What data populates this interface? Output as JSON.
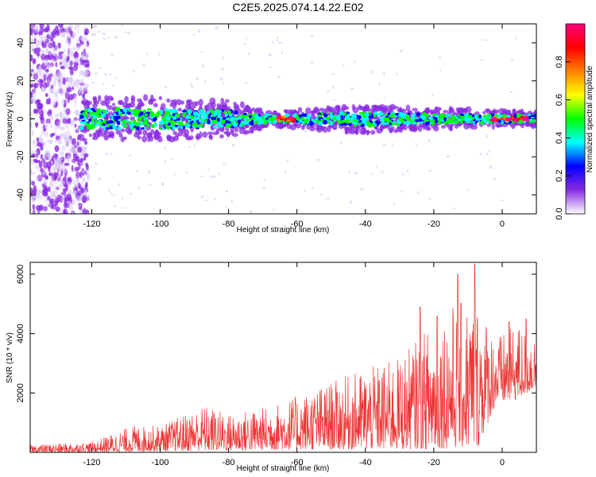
{
  "title": "C2E5.2025.074.14.22.E02",
  "chart_data": [
    {
      "type": "heatmap",
      "xlabel": "Height of straight line (km)",
      "ylabel": "Frequency (Hz)",
      "xlim": [
        -138,
        10
      ],
      "ylim": [
        -50,
        50
      ],
      "x_ticks": [
        -120,
        -100,
        -80,
        -60,
        -40,
        -20,
        0
      ],
      "y_ticks": [
        -40,
        -20,
        0,
        20,
        40
      ],
      "x_tick_labels": [
        "-120",
        "-100",
        "-80",
        "-60",
        "-40",
        "-20",
        "0"
      ],
      "y_tick_labels": [
        "-40",
        "-20",
        "0",
        "20",
        "40"
      ],
      "colorbar": {
        "label": "Normalized spectral amplitude",
        "range": [
          0,
          1
        ],
        "ticks": [
          0.0,
          0.2,
          0.4,
          0.6,
          0.8
        ],
        "tick_labels": [
          "0.0",
          "0.2",
          "0.4",
          "0.6",
          "0.8"
        ],
        "colors": [
          "#ffffff",
          "#8a2be2",
          "#0000ff",
          "#00ffff",
          "#00ff00",
          "#ffff00",
          "#ff8000",
          "#ff0000",
          "#ff0080"
        ]
      },
      "band": {
        "center_hz": 0,
        "noise_below_km": -123,
        "halfwidth_hz": [
          {
            "x": -124,
            "w": 6
          },
          {
            "x": -100,
            "w": 6
          },
          {
            "x": -80,
            "w": 5
          },
          {
            "x": -67,
            "w": 2
          },
          {
            "x": -40,
            "w": 4
          },
          {
            "x": -25,
            "w": 3
          },
          {
            "x": 10,
            "w": 2
          }
        ],
        "hot_segments_km": [
          [
            -66,
            -60
          ],
          [
            -3,
            8
          ]
        ]
      }
    },
    {
      "type": "line",
      "xlabel": "Height of straight line (km)",
      "ylabel": "SNR (10 * v/v)",
      "xlim": [
        -138,
        10
      ],
      "ylim": [
        0,
        6400
      ],
      "x_ticks": [
        -120,
        -100,
        -80,
        -60,
        -40,
        -20,
        0
      ],
      "y_ticks": [
        2000,
        4000,
        6000
      ],
      "x_tick_labels": [
        "-120",
        "-100",
        "-80",
        "-60",
        "-40",
        "-20",
        "0"
      ],
      "y_tick_labels": [
        "2000",
        "4000",
        "6000"
      ],
      "color": "#ee3333",
      "envelope": [
        {
          "x": -138,
          "low": 0,
          "high": 250
        },
        {
          "x": -120,
          "low": 0,
          "high": 350
        },
        {
          "x": -108,
          "low": 20,
          "high": 900
        },
        {
          "x": -100,
          "low": 40,
          "high": 900
        },
        {
          "x": -87,
          "low": 60,
          "high": 1600
        },
        {
          "x": -80,
          "low": 60,
          "high": 1300
        },
        {
          "x": -70,
          "low": 80,
          "high": 1500
        },
        {
          "x": -60,
          "low": 100,
          "high": 1900
        },
        {
          "x": -45,
          "low": 100,
          "high": 2600
        },
        {
          "x": -30,
          "low": 100,
          "high": 3200
        },
        {
          "x": -20,
          "low": 120,
          "high": 4400
        },
        {
          "x": -15,
          "low": 150,
          "high": 5000
        },
        {
          "x": -7,
          "low": 200,
          "high": 5200
        },
        {
          "x": -2,
          "low": 1600,
          "high": 3900
        },
        {
          "x": 5,
          "low": 1800,
          "high": 4300
        },
        {
          "x": 10,
          "low": 2200,
          "high": 3900
        }
      ],
      "peaks": [
        {
          "x": -24,
          "y": 4900
        },
        {
          "x": -13,
          "y": 6000
        },
        {
          "x": -8,
          "y": 6350
        },
        {
          "x": -19,
          "y": 4600
        },
        {
          "x": 2,
          "y": 4400
        },
        {
          "x": 7,
          "y": 4500
        }
      ]
    }
  ]
}
